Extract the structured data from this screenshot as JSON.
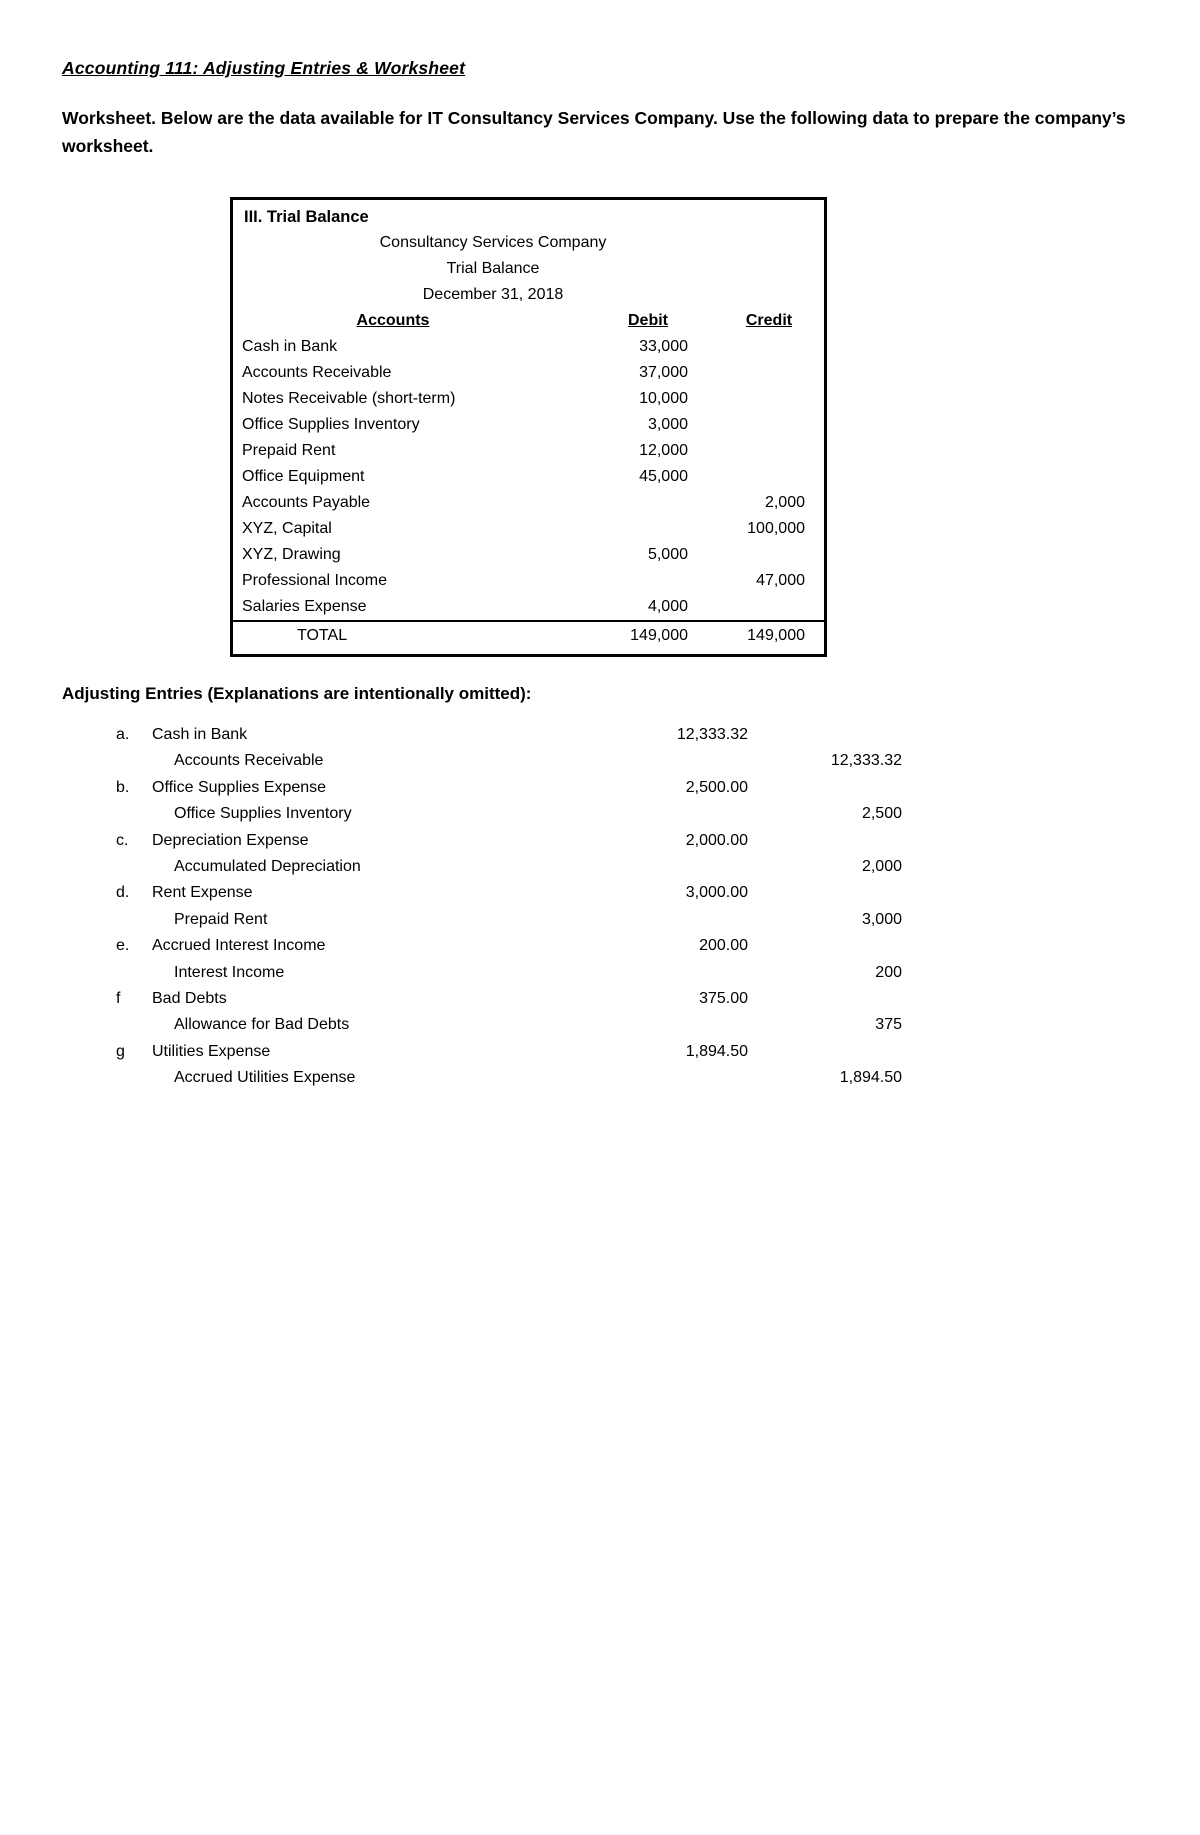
{
  "page": {
    "title": "Accounting 111: Adjusting Entries & Worksheet",
    "intro": "Worksheet. Below are the data available for  IT Consultancy Services Company. Use the following data to prepare the company’s worksheet."
  },
  "trial_balance": {
    "section_label": "III. Trial Balance",
    "company": "Consultancy Services Company",
    "report": "Trial Balance",
    "date": "December 31, 2018",
    "headers": {
      "accounts": "Accounts",
      "debit": "Debit",
      "credit": "Credit"
    },
    "rows": [
      {
        "account": "Cash in Bank",
        "debit": "33,000",
        "credit": ""
      },
      {
        "account": "Accounts Receivable",
        "debit": "37,000",
        "credit": ""
      },
      {
        "account": "Notes Receivable (short-term)",
        "debit": "10,000",
        "credit": ""
      },
      {
        "account": "Office Supplies Inventory",
        "debit": "3,000",
        "credit": ""
      },
      {
        "account": "Prepaid Rent",
        "debit": "12,000",
        "credit": ""
      },
      {
        "account": "Office Equipment",
        "debit": "45,000",
        "credit": ""
      },
      {
        "account": "Accounts Payable",
        "debit": "",
        "credit": "2,000"
      },
      {
        "account": "XYZ, Capital",
        "debit": "",
        "credit": "100,000"
      },
      {
        "account": "XYZ, Drawing",
        "debit": "5,000",
        "credit": ""
      },
      {
        "account": "Professional Income",
        "debit": "",
        "credit": "47,000"
      },
      {
        "account": "Salaries Expense",
        "debit": "4,000",
        "credit": ""
      }
    ],
    "total_label": "TOTAL",
    "total_debit": "149,000",
    "total_credit": "149,000"
  },
  "adjusting_entries": {
    "heading": "Adjusting Entries (Explanations are intentionally omitted):",
    "entries": [
      {
        "letter": "a.",
        "debit_account": "Cash in Bank",
        "debit_amount": "12,333.32",
        "credit_account": "Accounts Receivable",
        "credit_amount": "12,333.32"
      },
      {
        "letter": "b.",
        "debit_account": "Office Supplies Expense",
        "debit_amount": "2,500.00",
        "credit_account": "Office Supplies Inventory",
        "credit_amount": "2,500"
      },
      {
        "letter": "c.",
        "debit_account": "Depreciation Expense",
        "debit_amount": "2,000.00",
        "credit_account": "Accumulated Depreciation",
        "credit_amount": "2,000"
      },
      {
        "letter": "d.",
        "debit_account": "Rent Expense",
        "debit_amount": "3,000.00",
        "credit_account": "Prepaid Rent",
        "credit_amount": "3,000"
      },
      {
        "letter": "e.",
        "debit_account": "Accrued Interest Income",
        "debit_amount": "200.00",
        "credit_account": "Interest Income",
        "credit_amount": "200"
      },
      {
        "letter": "f",
        "debit_account": "Bad Debts",
        "debit_amount": "375.00",
        "credit_account": "Allowance for Bad Debts",
        "credit_amount": "375"
      },
      {
        "letter": "g",
        "debit_account": "Utilities Expense",
        "debit_amount": "1,894.50",
        "credit_account": "Accrued Utilities Expense",
        "credit_amount": "1,894.50"
      }
    ]
  }
}
